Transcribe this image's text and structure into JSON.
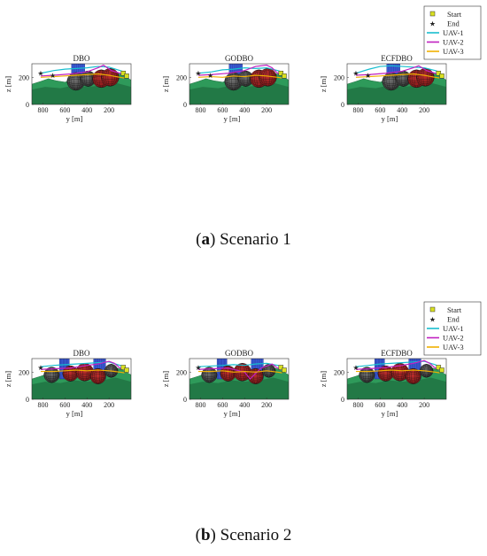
{
  "legend": {
    "entries": [
      {
        "label": "Start",
        "marker": "square",
        "color": "#d9e021"
      },
      {
        "label": "End",
        "marker": "star",
        "color": "#d9e021"
      },
      {
        "label": "UAV-1",
        "marker": "line",
        "color": "#17becf"
      },
      {
        "label": "UAV-2",
        "marker": "line",
        "color": "#c020c0"
      },
      {
        "label": "UAV-3",
        "marker": "line",
        "color": "#f0b000"
      }
    ]
  },
  "captions": [
    {
      "letter": "a",
      "text": "Scenario 1"
    },
    {
      "letter": "b",
      "text": "Scenario 2"
    }
  ],
  "colors": {
    "terrain": "#2e9a5a",
    "terrain_dark": "#1a5e36",
    "sphere_red": "#8b1a1a",
    "sphere_gray": "#3a3a3a",
    "building": "#3b5bd6",
    "axis": "#333333"
  },
  "chart_data": [
    {
      "type": "scatter",
      "scenario": 1,
      "title": "DBO",
      "xlabel": "y [m]",
      "ylabel": "z [m]",
      "xticks": [
        "800",
        "600",
        "400",
        "200"
      ],
      "yticks": [
        "0",
        "200"
      ],
      "xlim": [
        900,
        0
      ],
      "ylim": [
        0,
        300
      ],
      "spheres": [
        {
          "y": 500,
          "z": 170,
          "r": 80,
          "color": "gray"
        },
        {
          "y": 390,
          "z": 190,
          "r": 70,
          "color": "gray"
        },
        {
          "y": 270,
          "z": 190,
          "r": 80,
          "color": "red"
        },
        {
          "y": 190,
          "z": 200,
          "r": 80,
          "color": "red"
        }
      ],
      "buildings": [
        {
          "y0": 540,
          "y1": 420,
          "z": 300
        }
      ],
      "series": [
        {
          "name": "UAV-1",
          "x": [
            820,
            700,
            600,
            500,
            400,
            300,
            200,
            100,
            60
          ],
          "y": [
            230,
            250,
            260,
            265,
            270,
            280,
            275,
            250,
            240
          ]
        },
        {
          "name": "UAV-2",
          "x": [
            820,
            700,
            550,
            400,
            300,
            250,
            180,
            100,
            60
          ],
          "y": [
            210,
            215,
            225,
            240,
            270,
            290,
            250,
            230,
            220
          ]
        },
        {
          "name": "UAV-3",
          "x": [
            820,
            700,
            600,
            500,
            400,
            300,
            200,
            100,
            60
          ],
          "y": [
            200,
            205,
            210,
            215,
            220,
            225,
            215,
            200,
            195
          ]
        }
      ],
      "start": [
        {
          "y": 70,
          "z": 230
        },
        {
          "y": 40,
          "z": 210
        }
      ],
      "end": [
        {
          "y": 820,
          "z": 230
        },
        {
          "y": 710,
          "z": 215
        }
      ]
    },
    {
      "type": "scatter",
      "scenario": 1,
      "title": "GODBO",
      "xlabel": "y [m]",
      "ylabel": "z [m]",
      "xticks": [
        "800",
        "600",
        "400",
        "200"
      ],
      "yticks": [
        "0",
        "200"
      ],
      "xlim": [
        900,
        0
      ],
      "ylim": [
        0,
        300
      ],
      "spheres": [
        {
          "y": 500,
          "z": 170,
          "r": 80,
          "color": "gray"
        },
        {
          "y": 390,
          "z": 190,
          "r": 70,
          "color": "gray"
        },
        {
          "y": 270,
          "z": 190,
          "r": 80,
          "color": "red"
        },
        {
          "y": 190,
          "z": 200,
          "r": 80,
          "color": "red"
        }
      ],
      "buildings": [
        {
          "y0": 540,
          "y1": 420,
          "z": 300
        }
      ],
      "series": [
        {
          "name": "UAV-1",
          "x": [
            820,
            700,
            600,
            500,
            400,
            300,
            200,
            100,
            60
          ],
          "y": [
            230,
            240,
            255,
            260,
            270,
            265,
            270,
            250,
            240
          ]
        },
        {
          "name": "UAV-2",
          "x": [
            820,
            700,
            550,
            400,
            300,
            200,
            150,
            100,
            60
          ],
          "y": [
            215,
            220,
            230,
            250,
            280,
            290,
            270,
            230,
            220
          ]
        },
        {
          "name": "UAV-3",
          "x": [
            820,
            700,
            600,
            500,
            400,
            300,
            200,
            100,
            60
          ],
          "y": [
            200,
            205,
            200,
            210,
            205,
            215,
            210,
            200,
            195
          ]
        }
      ],
      "start": [
        {
          "y": 70,
          "z": 230
        },
        {
          "y": 40,
          "z": 210
        }
      ],
      "end": [
        {
          "y": 820,
          "z": 230
        },
        {
          "y": 710,
          "z": 215
        }
      ]
    },
    {
      "type": "scatter",
      "scenario": 1,
      "title": "ECFDBO",
      "xlabel": "y [m]",
      "ylabel": "z [m]",
      "xticks": [
        "800",
        "600",
        "400",
        "200"
      ],
      "yticks": [
        "0",
        "200"
      ],
      "xlim": [
        900,
        0
      ],
      "ylim": [
        0,
        300
      ],
      "spheres": [
        {
          "y": 500,
          "z": 170,
          "r": 80,
          "color": "gray"
        },
        {
          "y": 390,
          "z": 190,
          "r": 70,
          "color": "gray"
        },
        {
          "y": 270,
          "z": 190,
          "r": 80,
          "color": "red"
        },
        {
          "y": 190,
          "z": 200,
          "r": 80,
          "color": "red"
        }
      ],
      "buildings": [
        {
          "y0": 540,
          "y1": 420,
          "z": 300
        }
      ],
      "series": [
        {
          "name": "UAV-1",
          "x": [
            820,
            700,
            600,
            500,
            400,
            300,
            200,
            100,
            60
          ],
          "y": [
            230,
            260,
            280,
            285,
            280,
            275,
            270,
            250,
            240
          ]
        },
        {
          "name": "UAV-2",
          "x": [
            820,
            700,
            550,
            400,
            300,
            250,
            180,
            100,
            60
          ],
          "y": [
            215,
            220,
            230,
            245,
            270,
            285,
            250,
            230,
            220
          ]
        },
        {
          "name": "UAV-3",
          "x": [
            820,
            700,
            600,
            500,
            400,
            300,
            200,
            100,
            60
          ],
          "y": [
            200,
            205,
            210,
            215,
            220,
            225,
            215,
            200,
            195
          ]
        }
      ],
      "start": [
        {
          "y": 70,
          "z": 230
        },
        {
          "y": 40,
          "z": 210
        }
      ],
      "end": [
        {
          "y": 820,
          "z": 230
        },
        {
          "y": 710,
          "z": 215
        }
      ]
    },
    {
      "type": "scatter",
      "scenario": 2,
      "title": "DBO",
      "xlabel": "y [m]",
      "ylabel": "z [m]",
      "xticks": [
        "800",
        "600",
        "400",
        "200"
      ],
      "yticks": [
        "0",
        "200"
      ],
      "xlim": [
        900,
        0
      ],
      "ylim": [
        0,
        300
      ],
      "spheres": [
        {
          "y": 720,
          "z": 180,
          "r": 70,
          "color": "gray"
        },
        {
          "y": 550,
          "z": 190,
          "r": 70,
          "color": "red"
        },
        {
          "y": 420,
          "z": 200,
          "r": 80,
          "color": "red"
        },
        {
          "y": 300,
          "z": 170,
          "r": 70,
          "color": "red"
        },
        {
          "y": 180,
          "z": 210,
          "r": 60,
          "color": "gray"
        }
      ],
      "buildings": [
        {
          "y0": 650,
          "y1": 560,
          "z": 300
        },
        {
          "y0": 340,
          "y1": 230,
          "z": 300
        }
      ],
      "series": [
        {
          "name": "UAV-1",
          "x": [
            820,
            700,
            600,
            500,
            400,
            300,
            200,
            100,
            60
          ],
          "y": [
            240,
            250,
            255,
            260,
            265,
            270,
            275,
            250,
            240
          ]
        },
        {
          "name": "UAV-2",
          "x": [
            820,
            700,
            550,
            400,
            300,
            200,
            150,
            100,
            60
          ],
          "y": [
            220,
            225,
            230,
            250,
            260,
            280,
            265,
            230,
            220
          ]
        },
        {
          "name": "UAV-3",
          "x": [
            820,
            700,
            600,
            500,
            400,
            300,
            200,
            100,
            60
          ],
          "y": [
            205,
            205,
            210,
            215,
            210,
            215,
            210,
            200,
            195
          ]
        }
      ],
      "start": [
        {
          "y": 70,
          "z": 235
        },
        {
          "y": 40,
          "z": 215
        }
      ],
      "end": [
        {
          "y": 820,
          "z": 235
        }
      ]
    },
    {
      "type": "scatter",
      "scenario": 2,
      "title": "GODBO",
      "xlabel": "y [m]",
      "ylabel": "z [m]",
      "xticks": [
        "800",
        "600",
        "400",
        "200"
      ],
      "yticks": [
        "0",
        "200"
      ],
      "xlim": [
        900,
        0
      ],
      "ylim": [
        0,
        300
      ],
      "spheres": [
        {
          "y": 720,
          "z": 180,
          "r": 70,
          "color": "gray"
        },
        {
          "y": 550,
          "z": 190,
          "r": 70,
          "color": "red"
        },
        {
          "y": 420,
          "z": 200,
          "r": 80,
          "color": "red"
        },
        {
          "y": 300,
          "z": 170,
          "r": 70,
          "color": "red"
        },
        {
          "y": 180,
          "z": 210,
          "r": 60,
          "color": "gray"
        }
      ],
      "buildings": [
        {
          "y0": 650,
          "y1": 560,
          "z": 300
        },
        {
          "y0": 340,
          "y1": 230,
          "z": 300
        }
      ],
      "series": [
        {
          "name": "UAV-1",
          "x": [
            820,
            700,
            600,
            500,
            400,
            300,
            200,
            100,
            60
          ],
          "y": [
            240,
            245,
            250,
            255,
            250,
            260,
            265,
            250,
            240
          ]
        },
        {
          "name": "UAV-2",
          "x": [
            820,
            700,
            550,
            400,
            350,
            250,
            150,
            100,
            60
          ],
          "y": [
            220,
            225,
            230,
            200,
            150,
            230,
            260,
            230,
            220
          ]
        },
        {
          "name": "UAV-3",
          "x": [
            820,
            700,
            600,
            500,
            400,
            300,
            200,
            100,
            60
          ],
          "y": [
            205,
            205,
            210,
            200,
            205,
            200,
            210,
            200,
            195
          ]
        }
      ],
      "start": [
        {
          "y": 70,
          "z": 235
        },
        {
          "y": 40,
          "z": 215
        }
      ],
      "end": [
        {
          "y": 820,
          "z": 235
        }
      ]
    },
    {
      "type": "scatter",
      "scenario": 2,
      "title": "ECFDBO",
      "xlabel": "y [m]",
      "ylabel": "z [m]",
      "xticks": [
        "800",
        "600",
        "400",
        "200"
      ],
      "yticks": [
        "0",
        "200"
      ],
      "xlim": [
        900,
        0
      ],
      "ylim": [
        0,
        300
      ],
      "spheres": [
        {
          "y": 720,
          "z": 180,
          "r": 70,
          "color": "gray"
        },
        {
          "y": 550,
          "z": 190,
          "r": 70,
          "color": "red"
        },
        {
          "y": 420,
          "z": 200,
          "r": 80,
          "color": "red"
        },
        {
          "y": 300,
          "z": 170,
          "r": 70,
          "color": "red"
        },
        {
          "y": 180,
          "z": 210,
          "r": 60,
          "color": "gray"
        }
      ],
      "buildings": [
        {
          "y0": 650,
          "y1": 560,
          "z": 300
        },
        {
          "y0": 340,
          "y1": 230,
          "z": 300
        }
      ],
      "series": [
        {
          "name": "UAV-1",
          "x": [
            820,
            700,
            600,
            500,
            400,
            300,
            200,
            100,
            60
          ],
          "y": [
            240,
            250,
            260,
            265,
            270,
            275,
            280,
            255,
            240
          ]
        },
        {
          "name": "UAV-2",
          "x": [
            820,
            700,
            550,
            400,
            300,
            200,
            150,
            100,
            60
          ],
          "y": [
            220,
            225,
            235,
            250,
            265,
            285,
            265,
            230,
            220
          ]
        },
        {
          "name": "UAV-3",
          "x": [
            820,
            700,
            600,
            500,
            400,
            300,
            200,
            100,
            60
          ],
          "y": [
            205,
            205,
            210,
            215,
            210,
            215,
            210,
            200,
            195
          ]
        }
      ],
      "start": [
        {
          "y": 70,
          "z": 235
        },
        {
          "y": 40,
          "z": 215
        }
      ],
      "end": [
        {
          "y": 820,
          "z": 235
        }
      ]
    }
  ]
}
